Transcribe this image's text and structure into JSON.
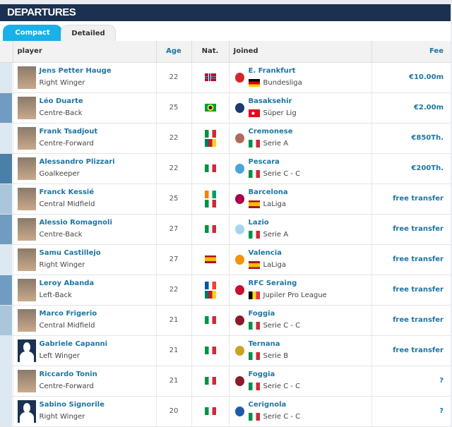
{
  "title": "DEPARTURES",
  "tabs": [
    {
      "label": "Compact",
      "active": true
    },
    {
      "label": "Detailed",
      "active": false
    }
  ],
  "columns": {
    "player": "player",
    "age": "Age",
    "nat": "Nat.",
    "joined": "Joined",
    "fee": "Fee"
  },
  "colors": {
    "header": "#1a3151",
    "tab_active": "#1bb0e8",
    "link": "#1d75a3"
  },
  "rows": [
    {
      "name": "Jens Petter Hauge",
      "position": "Right Winger",
      "age": "22",
      "nat": [
        "no"
      ],
      "club": "E. Frankfurt",
      "club_color": "#d6242b",
      "league_flag": "de",
      "league": "Bundesliga",
      "fee": "€10.00m",
      "bar": "#dde8f0",
      "photo": true
    },
    {
      "name": "Léo Duarte",
      "position": "Centre-Back",
      "age": "25",
      "nat": [
        "br"
      ],
      "club": "Basaksehir",
      "club_color": "#1e3a6e",
      "league_flag": "tr",
      "league": "Süper Lig",
      "fee": "€2.00m",
      "bar": "#6f9cc0",
      "photo": true
    },
    {
      "name": "Frank Tsadjout",
      "position": "Centre-Forward",
      "age": "22",
      "nat": [
        "it",
        "cm"
      ],
      "club": "Cremonese",
      "club_color": "#b06a5a",
      "league_flag": "it",
      "league": "Serie A",
      "fee": "€850Th.",
      "bar": "#dde8f0",
      "photo": true
    },
    {
      "name": "Alessandro Plizzari",
      "position": "Goalkeeper",
      "age": "22",
      "nat": [
        "it"
      ],
      "club": "Pescara",
      "club_color": "#4aa3dc",
      "league_flag": "it",
      "league": "Serie C - C",
      "fee": "€200Th.",
      "bar": "#4a80a8",
      "photo": true
    },
    {
      "name": "Franck Kessié",
      "position": "Central Midfield",
      "age": "25",
      "nat": [
        "ci",
        "it"
      ],
      "club": "Barcelona",
      "club_color": "#a50044",
      "league_flag": "es",
      "league": "LaLiga",
      "fee": "free transfer",
      "bar": "#a9c6da",
      "photo": true
    },
    {
      "name": "Alessio Romagnoli",
      "position": "Centre-Back",
      "age": "27",
      "nat": [
        "it"
      ],
      "club": "Lazio",
      "club_color": "#a7d3ef",
      "league_flag": "it",
      "league": "Serie A",
      "fee": "free transfer",
      "bar": "#6f9cc0",
      "photo": true
    },
    {
      "name": "Samu Castillejo",
      "position": "Right Winger",
      "age": "27",
      "nat": [
        "es"
      ],
      "club": "Valencia",
      "club_color": "#f29400",
      "league_flag": "es",
      "league": "LaLiga",
      "fee": "free transfer",
      "bar": "#dde8f0",
      "photo": true
    },
    {
      "name": "Leroy Abanda",
      "position": "Left-Back",
      "age": "22",
      "nat": [
        "fr",
        "cm"
      ],
      "club": "RFC Seraing",
      "club_color": "#c8102e",
      "league_flag": "be",
      "league": "Jupiler Pro League",
      "fee": "free transfer",
      "bar": "#6f9cc0",
      "photo": true
    },
    {
      "name": "Marco Frigerio",
      "position": "Central Midfield",
      "age": "21",
      "nat": [
        "it"
      ],
      "club": "Foggia",
      "club_color": "#8b1a2b",
      "league_flag": "it",
      "league": "Serie C - C",
      "fee": "free transfer",
      "bar": "#a9c6da",
      "photo": true
    },
    {
      "name": "Gabriele Capanni",
      "position": "Left Winger",
      "age": "21",
      "nat": [
        "it"
      ],
      "club": "Ternana",
      "club_color": "#c9a227",
      "league_flag": "it",
      "league": "Serie B",
      "fee": "free transfer",
      "bar": "#dde8f0",
      "photo": false
    },
    {
      "name": "Riccardo Tonin",
      "position": "Centre-Forward",
      "age": "21",
      "nat": [
        "it"
      ],
      "club": "Foggia",
      "club_color": "#8b1a2b",
      "league_flag": "it",
      "league": "Serie C - C",
      "fee": "?",
      "bar": "#dde8f0",
      "photo": true
    },
    {
      "name": "Sabino Signorile",
      "position": "Right Winger",
      "age": "20",
      "nat": [
        "it"
      ],
      "club": "Cerignola",
      "club_color": "#1e5aa8",
      "league_flag": "it",
      "league": "Serie C - C",
      "fee": "?",
      "bar": "#dde8f0",
      "photo": false
    }
  ]
}
